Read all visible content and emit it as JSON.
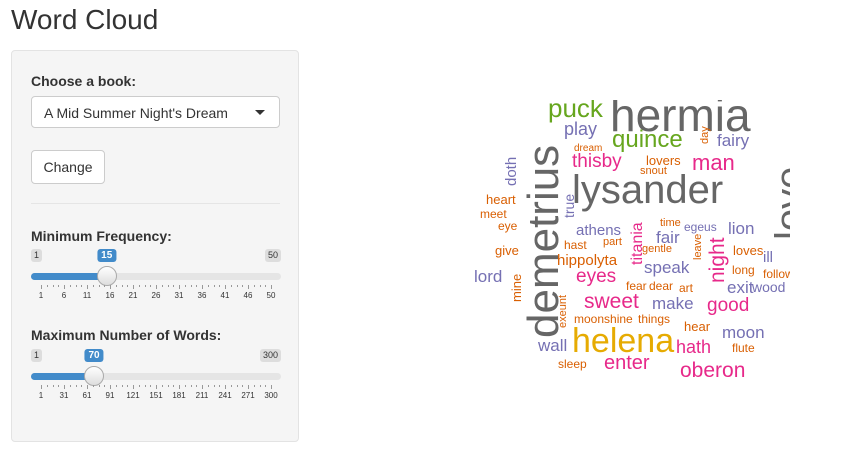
{
  "app": {
    "title": "Word Cloud"
  },
  "sidebar": {
    "book_label": "Choose a book:",
    "book_selected": "A Mid Summer Night's Dream",
    "change_button": "Change",
    "freq": {
      "label": "Minimum Frequency:",
      "min": 1,
      "max": 50,
      "value": 15,
      "ticks": [
        "1",
        "6",
        "11",
        "16",
        "21",
        "26",
        "31",
        "36",
        "41",
        "46",
        "50"
      ]
    },
    "words": {
      "label": "Maximum Number of Words:",
      "min": 1,
      "max": 300,
      "value": 70,
      "ticks": [
        "1",
        "31",
        "61",
        "91",
        "121",
        "151",
        "181",
        "211",
        "241",
        "271",
        "300"
      ]
    }
  },
  "colors": {
    "accent": "#428bca",
    "gray": "#666666",
    "pink": "#e7298a",
    "orange": "#d95f02",
    "purple": "#7570b3",
    "green": "#66a61e",
    "gold": "#e6ab02",
    "teal": "#1b9e77"
  },
  "cloud": {
    "words": [
      {
        "t": "hermia",
        "c": "gray"
      },
      {
        "t": "puck",
        "c": "green"
      },
      {
        "t": "lysander",
        "c": "gray"
      },
      {
        "t": "demetrius",
        "c": "gray"
      },
      {
        "t": "love",
        "c": "gray"
      },
      {
        "t": "helena",
        "c": "gold"
      },
      {
        "t": "quince",
        "c": "green"
      },
      {
        "t": "play",
        "c": "purple"
      },
      {
        "t": "day",
        "c": "orange"
      },
      {
        "t": "fairy",
        "c": "purple"
      },
      {
        "t": "thisby",
        "c": "pink"
      },
      {
        "t": "man",
        "c": "pink"
      },
      {
        "t": "dream",
        "c": "orange"
      },
      {
        "t": "lovers",
        "c": "orange"
      },
      {
        "t": "snout",
        "c": "orange"
      },
      {
        "t": "doth",
        "c": "purple"
      },
      {
        "t": "true",
        "c": "purple"
      },
      {
        "t": "heart",
        "c": "orange"
      },
      {
        "t": "meet",
        "c": "orange"
      },
      {
        "t": "eye",
        "c": "orange"
      },
      {
        "t": "time",
        "c": "orange"
      },
      {
        "t": "egeus",
        "c": "purple"
      },
      {
        "t": "lion",
        "c": "purple"
      },
      {
        "t": "athens",
        "c": "purple"
      },
      {
        "t": "fair",
        "c": "purple"
      },
      {
        "t": "titania",
        "c": "pink"
      },
      {
        "t": "leave",
        "c": "orange"
      },
      {
        "t": "night",
        "c": "pink"
      },
      {
        "t": "give",
        "c": "orange"
      },
      {
        "t": "hast",
        "c": "orange"
      },
      {
        "t": "part",
        "c": "orange"
      },
      {
        "t": "gentle",
        "c": "orange"
      },
      {
        "t": "loves",
        "c": "orange"
      },
      {
        "t": "ill",
        "c": "purple"
      },
      {
        "t": "hippolyta",
        "c": "orange"
      },
      {
        "t": "speak",
        "c": "purple"
      },
      {
        "t": "long",
        "c": "orange"
      },
      {
        "t": "follow",
        "c": "orange"
      },
      {
        "t": "lord",
        "c": "purple"
      },
      {
        "t": "mine",
        "c": "orange"
      },
      {
        "t": "eyes",
        "c": "pink"
      },
      {
        "t": "fear",
        "c": "orange"
      },
      {
        "t": "dear",
        "c": "orange"
      },
      {
        "t": "art",
        "c": "orange"
      },
      {
        "t": "exit",
        "c": "purple"
      },
      {
        "t": "wood",
        "c": "purple"
      },
      {
        "t": "sweet",
        "c": "pink"
      },
      {
        "t": "make",
        "c": "purple"
      },
      {
        "t": "good",
        "c": "pink"
      },
      {
        "t": "exeunt",
        "c": "orange"
      },
      {
        "t": "moonshine",
        "c": "orange"
      },
      {
        "t": "things",
        "c": "orange"
      },
      {
        "t": "hear",
        "c": "orange"
      },
      {
        "t": "moon",
        "c": "purple"
      },
      {
        "t": "wall",
        "c": "purple"
      },
      {
        "t": "hath",
        "c": "pink"
      },
      {
        "t": "flute",
        "c": "orange"
      },
      {
        "t": "sleep",
        "c": "orange"
      },
      {
        "t": "enter",
        "c": "pink"
      },
      {
        "t": "oberon",
        "c": "pink"
      }
    ]
  }
}
